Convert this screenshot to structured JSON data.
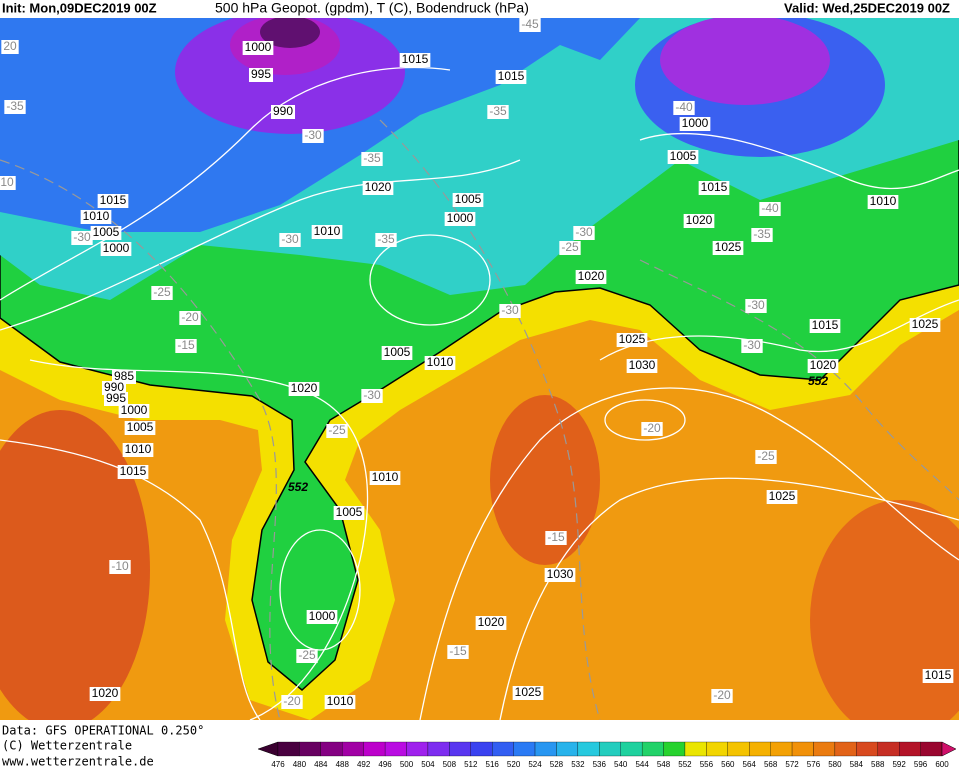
{
  "header": {
    "init": "Init: Mon,09DEC2019 00Z",
    "title": "500 hPa Geopot. (gpdm), T (C), Bodendruck (hPa)",
    "valid": "Valid: Wed,25DEC2019 00Z"
  },
  "map": {
    "isobar_labels": [
      "1000",
      "995",
      "990",
      "1015",
      "1015",
      "1000",
      "1005",
      "1015",
      "1010",
      "1020",
      "1005",
      "1000",
      "1010",
      "1015",
      "1010",
      "1005",
      "1000",
      "1020",
      "1020",
      "1025",
      "1015",
      "1025",
      "1020",
      "1025",
      "1030",
      "1005",
      "1010",
      "1020",
      "985",
      "990",
      "995",
      "1000",
      "1005",
      "1010",
      "1015",
      "1010",
      "1005",
      "1000",
      "1020",
      "1030",
      "1025",
      "1025",
      "1010",
      "1020",
      "1015"
    ],
    "temperature_labels": [
      "-45",
      "-35",
      "-35",
      "-35",
      "-30",
      "-30",
      "-35",
      "-25",
      "-30",
      "-40",
      "-40",
      "-35",
      "-30",
      "-30",
      "-30",
      "-25",
      "-20",
      "-15",
      "-30",
      "-30",
      "-25",
      "-20",
      "-25",
      "-15",
      "-10",
      "-15",
      "-25",
      "-20",
      "-20",
      "20",
      "10"
    ],
    "height_labels": [
      "552",
      "552"
    ]
  },
  "legend": {
    "levels": [
      476,
      480,
      484,
      488,
      492,
      496,
      500,
      504,
      508,
      512,
      516,
      520,
      524,
      528,
      532,
      536,
      540,
      544,
      548,
      552,
      556,
      560,
      564,
      568,
      572,
      576,
      580,
      584,
      588,
      592,
      596,
      600
    ]
  },
  "footer": {
    "data": "Data: GFS OPERATIONAL 0.250°",
    "copyright": "(C) Wetterzentrale",
    "url": "www.wetterzentrale.de"
  }
}
